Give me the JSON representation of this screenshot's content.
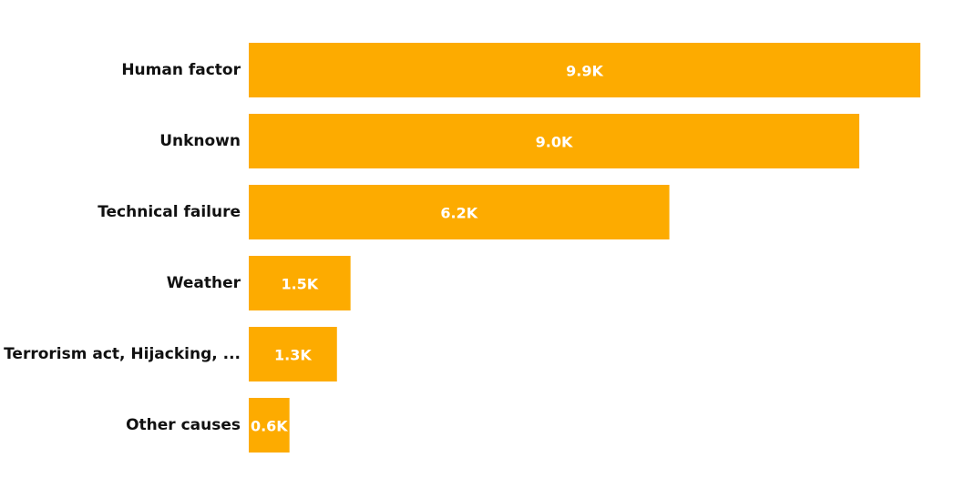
{
  "chart_data": {
    "type": "bar",
    "orientation": "horizontal",
    "categories": [
      "Human factor",
      "Unknown",
      "Technical failure",
      "Weather",
      "Terrorism act, Hijacking, ...",
      "Other causes"
    ],
    "values": [
      9900,
      9000,
      6200,
      1500,
      1300,
      600
    ],
    "data_labels": [
      "9.9K",
      "9.0K",
      "6.2K",
      "1.5K",
      "1.3K",
      "0.6K"
    ],
    "title": "",
    "xlabel": "",
    "ylabel": "",
    "xlim": [
      0,
      9900
    ],
    "grid": false,
    "legend": "none",
    "bar_color": "#FDAB00",
    "label_color": "#111111",
    "data_label_color": "#ffffff"
  }
}
